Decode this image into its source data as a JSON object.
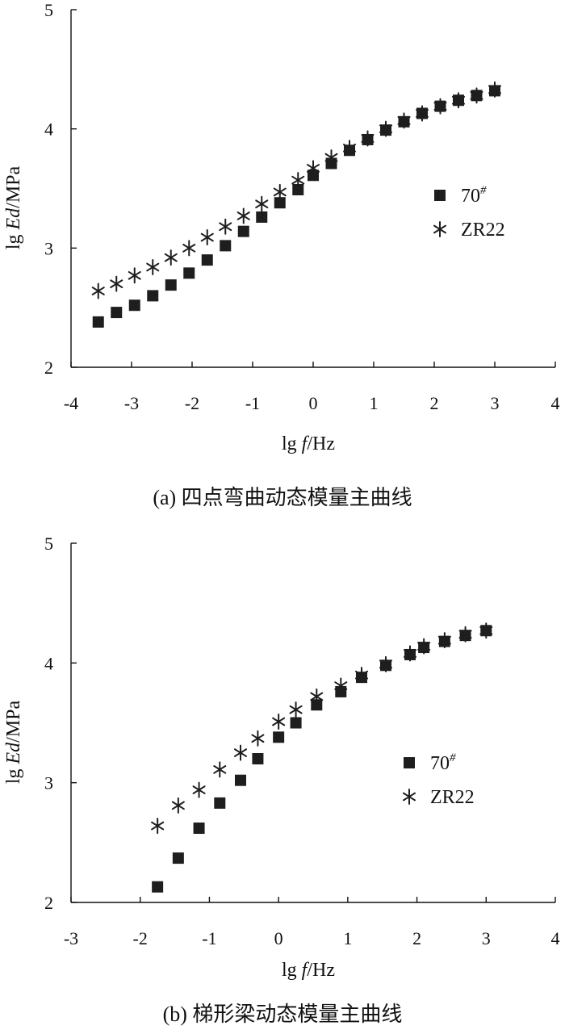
{
  "chart_data": [
    {
      "type": "scatter",
      "caption": "(a) 四点弯曲动态模量主曲线",
      "xlabel": {
        "prefix": "lg ",
        "var": "f",
        "suffix": "/Hz"
      },
      "ylabel": {
        "prefix": "lg ",
        "var": "Ed",
        "suffix": "/MPa"
      },
      "xlim": [
        -4,
        4
      ],
      "ylim": [
        2,
        5
      ],
      "xticks": [
        "-4",
        "-3",
        "-2",
        "-1",
        "0",
        "1",
        "2",
        "3",
        "4"
      ],
      "yticks": [
        "2",
        "3",
        "4",
        "5"
      ],
      "grid": false,
      "legend_position": "right",
      "series": [
        {
          "name": {
            "base": "70",
            "sup": "#"
          },
          "marker": "square",
          "x": [
            -3.55,
            -3.25,
            -2.95,
            -2.65,
            -2.35,
            -2.05,
            -1.75,
            -1.45,
            -1.15,
            -0.85,
            -0.55,
            -0.25,
            0.0,
            0.3,
            0.6,
            0.9,
            1.2,
            1.5,
            1.8,
            2.1,
            2.4,
            2.7,
            3.0
          ],
          "y": [
            2.38,
            2.46,
            2.52,
            2.6,
            2.69,
            2.79,
            2.9,
            3.02,
            3.14,
            3.26,
            3.38,
            3.49,
            3.61,
            3.71,
            3.82,
            3.91,
            3.99,
            4.06,
            4.13,
            4.19,
            4.24,
            4.28,
            4.32
          ]
        },
        {
          "name": {
            "base": "ZR22",
            "sup": ""
          },
          "marker": "star",
          "x": [
            -3.55,
            -3.25,
            -2.95,
            -2.65,
            -2.35,
            -2.05,
            -1.75,
            -1.45,
            -1.15,
            -0.85,
            -0.55,
            -0.25,
            0.0,
            0.3,
            0.6,
            0.9,
            1.2,
            1.5,
            1.8,
            2.1,
            2.4,
            2.7,
            3.0
          ],
          "y": [
            2.64,
            2.7,
            2.77,
            2.84,
            2.92,
            3.0,
            3.09,
            3.18,
            3.27,
            3.37,
            3.47,
            3.57,
            3.67,
            3.76,
            3.84,
            3.92,
            4.0,
            4.07,
            4.13,
            4.19,
            4.24,
            4.28,
            4.33
          ]
        }
      ]
    },
    {
      "type": "scatter",
      "caption": "(b) 梯形梁动态模量主曲线",
      "xlabel": {
        "prefix": "lg ",
        "var": "f",
        "suffix": "/Hz"
      },
      "ylabel": {
        "prefix": "lg ",
        "var": "Ed",
        "suffix": "/MPa"
      },
      "xlim": [
        -3,
        4
      ],
      "ylim": [
        2,
        5
      ],
      "xticks": [
        "-3",
        "-2",
        "-1",
        "0",
        "1",
        "2",
        "3",
        "4"
      ],
      "yticks": [
        "2",
        "3",
        "4",
        "5"
      ],
      "grid": false,
      "legend_position": "right",
      "series": [
        {
          "name": {
            "base": "70",
            "sup": "#"
          },
          "marker": "square",
          "x": [
            -1.75,
            -1.45,
            -1.15,
            -0.85,
            -0.55,
            -0.3,
            0.0,
            0.25,
            0.55,
            0.9,
            1.2,
            1.55,
            1.9,
            2.1,
            2.4,
            2.7,
            3.0
          ],
          "y": [
            2.13,
            2.37,
            2.62,
            2.83,
            3.02,
            3.2,
            3.38,
            3.5,
            3.65,
            3.76,
            3.88,
            3.98,
            4.07,
            4.13,
            4.18,
            4.23,
            4.27
          ]
        },
        {
          "name": {
            "base": "ZR22",
            "sup": ""
          },
          "marker": "star",
          "x": [
            -1.75,
            -1.45,
            -1.15,
            -0.85,
            -0.55,
            -0.3,
            0.0,
            0.25,
            0.55,
            0.9,
            1.2,
            1.55,
            1.9,
            2.1,
            2.4,
            2.7,
            3.0
          ],
          "y": [
            2.64,
            2.81,
            2.94,
            3.11,
            3.25,
            3.37,
            3.51,
            3.61,
            3.72,
            3.81,
            3.9,
            3.99,
            4.08,
            4.14,
            4.19,
            4.24,
            4.27
          ]
        }
      ]
    }
  ]
}
